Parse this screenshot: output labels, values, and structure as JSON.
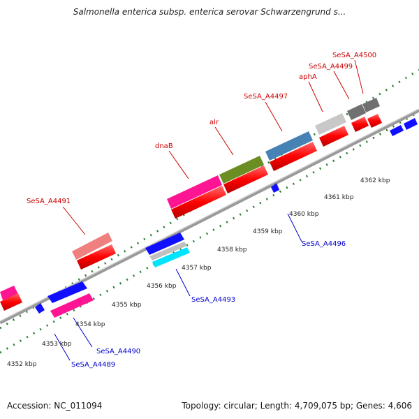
{
  "title": "Salmonella enterica subsp. enterica serovar Schwarzengrund s...",
  "footer": {
    "accession": "Accession: NC_011094",
    "summary": "Topology: circular; Length: 4,709,075 bp; Genes: 4,606"
  },
  "scale_labels": [
    "4352 kbp",
    "4353 kbp",
    "4354 kbp",
    "4355 kbp",
    "4356 kbp",
    "4357 kbp",
    "4358 kbp",
    "4359 kbp",
    "4360 kbp",
    "4361 kbp",
    "4362 kbp"
  ],
  "gene_labels": {
    "SeSA_A4491": "SeSA_A4491",
    "dnaB": "dnaB",
    "alr": "alr",
    "SeSA_A4497": "SeSA_A4497",
    "aphA": "aphA",
    "SeSA_A4499": "SeSA_A4499",
    "SeSA_A4500": "SeSA_A4500",
    "SeSA_A4489": "SeSA_A4489",
    "SeSA_A4490": "SeSA_A4490",
    "SeSA_A4493": "SeSA_A4493",
    "SeSA_A4496": "SeSA_A4496"
  },
  "colors": {
    "forward_label": "#cc0000",
    "reverse_label": "#0000cc",
    "backbone": "#888888",
    "tick": "#2e7d32"
  }
}
